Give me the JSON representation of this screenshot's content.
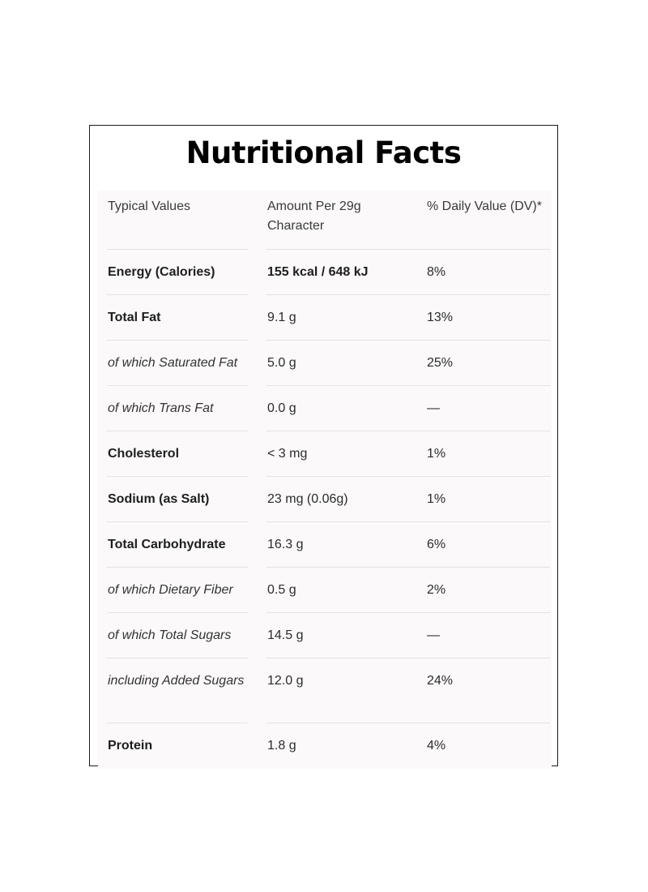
{
  "title": "Nutritional Facts",
  "header": {
    "col1": "Typical Values",
    "col2": "Amount Per 29g Character",
    "col3": "% Daily Value (DV)*"
  },
  "rows": [
    {
      "label": "Energy (Calories)",
      "amount": "155 kcal / 648 kJ",
      "dv": "8%",
      "style": "bold"
    },
    {
      "label": "Total Fat",
      "amount": "9.1 g",
      "dv": "13%",
      "style": "bold"
    },
    {
      "label": "of which Saturated Fat",
      "amount": "5.0 g",
      "dv": "25%",
      "style": "italic"
    },
    {
      "label": "of which Trans Fat",
      "amount": "0.0 g",
      "dv": "—",
      "style": "italic"
    },
    {
      "label": "Cholesterol",
      "amount": "< 3 mg",
      "dv": "1%",
      "style": "bold"
    },
    {
      "label": "Sodium (as Salt)",
      "amount": "23 mg (0.06g)",
      "dv": "1%",
      "style": "bold"
    },
    {
      "label": "Total Carbohydrate",
      "amount": "16.3 g",
      "dv": "6%",
      "style": "bold"
    },
    {
      "label": "of which Dietary Fiber",
      "amount": "0.5 g",
      "dv": "2%",
      "style": "italic"
    },
    {
      "label": "of which Total Sugars",
      "amount": "14.5 g",
      "dv": "—",
      "style": "italic"
    },
    {
      "label": "including Added Sugars",
      "amount": "12.0 g",
      "dv": "24%",
      "style": "italic"
    },
    {
      "label": "Protein",
      "amount": "1.8 g",
      "dv": "4%",
      "style": "bold"
    }
  ]
}
